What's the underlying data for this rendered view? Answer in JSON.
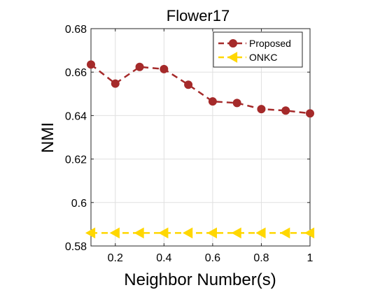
{
  "chart_data": {
    "type": "line",
    "title": "Flower17",
    "xlabel": "Neighbor Number(s)",
    "ylabel": "NMI",
    "xlim": [
      0.1,
      1
    ],
    "ylim": [
      0.58,
      0.68
    ],
    "xticks": [
      0.2,
      0.4,
      0.6,
      0.8,
      1
    ],
    "xtick_labels": [
      "0.2",
      "0.4",
      "0.6",
      "0.8",
      "1"
    ],
    "yticks": [
      0.58,
      0.6,
      0.62,
      0.64,
      0.66,
      0.68
    ],
    "ytick_labels": [
      "0.58",
      "0.6",
      "0.62",
      "0.64",
      "0.66",
      "0.68"
    ],
    "grid": true,
    "legend_position": "top-right",
    "x": [
      0.1,
      0.2,
      0.3,
      0.4,
      0.5,
      0.6,
      0.7,
      0.8,
      0.9,
      1.0
    ],
    "series": [
      {
        "name": "Proposed",
        "color": "#a52a2a",
        "marker": "circle",
        "line": "dashed",
        "values": [
          0.6635,
          0.6547,
          0.6624,
          0.6614,
          0.6542,
          0.6465,
          0.6458,
          0.643,
          0.6423,
          0.641
        ]
      },
      {
        "name": "ONKC",
        "color": "#ffd700",
        "marker": "triangle-left",
        "line": "dashed",
        "values": [
          0.586,
          0.586,
          0.586,
          0.586,
          0.586,
          0.586,
          0.586,
          0.586,
          0.586,
          0.586
        ]
      }
    ]
  }
}
